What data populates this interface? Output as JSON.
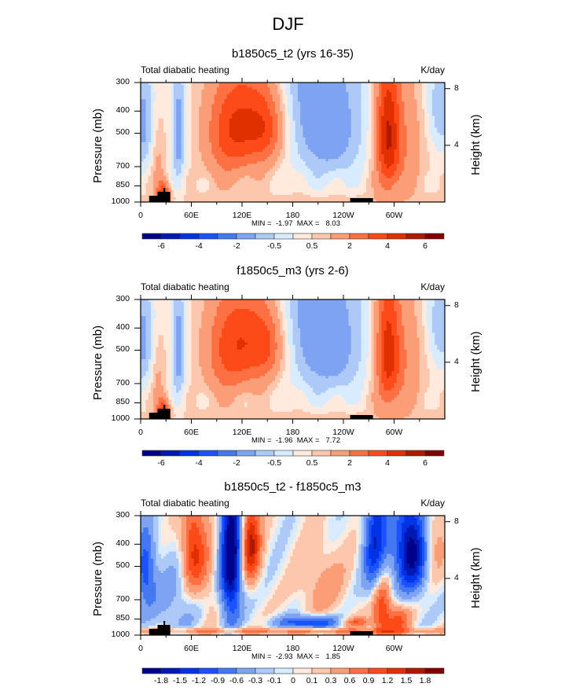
{
  "figure": {
    "title": "DJF",
    "colors_full": [
      "#00008a",
      "#0019b3",
      "#0033e6",
      "#1a52ff",
      "#4478f0",
      "#7ea3f2",
      "#adc9f7",
      "#d9ebff",
      "#ffeadd",
      "#fdc7ad",
      "#fb9e78",
      "#fd7043",
      "#fc4a18",
      "#e03000",
      "#b01800",
      "#800000"
    ],
    "topography_color": "#000000"
  },
  "chart_data": [
    {
      "type": "heatmap",
      "title": "b1850c5_t2 (yrs 16-35)",
      "left_string": "Total diabatic heating",
      "right_string": "K/day",
      "xlabel": "",
      "ylabel": "Pressure (mb)",
      "ylabel_right": "Height (km)",
      "x_ticks": [
        "0",
        "60E",
        "120E",
        "180",
        "120W",
        "60W"
      ],
      "x_tick_values": [
        0,
        60,
        120,
        180,
        240,
        300
      ],
      "xlim": [
        0,
        360
      ],
      "y_ticks": [
        "300",
        "400",
        "500",
        "700",
        "850",
        "1000"
      ],
      "y_tick_values": [
        300,
        400,
        500,
        700,
        850,
        1000
      ],
      "ylim": [
        1000,
        300
      ],
      "y_right_ticks": [
        "8",
        "4"
      ],
      "y_right_tick_values": [
        8,
        4
      ],
      "min_max_text": "MIN =  -1.97  MAX =   8.03",
      "min": -1.97,
      "max": 8.03,
      "contour_levels": [
        -6,
        -5,
        -4,
        -3,
        -2,
        -1,
        -0.5,
        0,
        0.5,
        1,
        2,
        3,
        4,
        5,
        6
      ],
      "colorbar_labels": [
        "-6",
        "",
        "-4",
        "",
        "-2",
        "",
        "-0.5",
        "",
        "0.5",
        "",
        "2",
        "",
        "4",
        "",
        "6"
      ],
      "field_description": "Heating maxima over Maritime Continent (~100-150E, 300-700mb, up to ~5 K/day) and South America (~70-50W, up to 8 K/day); cooling over eastern Pacific (~160-110W, -1 to -2 K/day)."
    },
    {
      "type": "heatmap",
      "title": "f1850c5_m3 (yrs 2-6)",
      "left_string": "Total diabatic heating",
      "right_string": "K/day",
      "xlabel": "",
      "ylabel": "Pressure (mb)",
      "ylabel_right": "Height (km)",
      "x_ticks": [
        "0",
        "60E",
        "120E",
        "180",
        "120W",
        "60W"
      ],
      "x_tick_values": [
        0,
        60,
        120,
        180,
        240,
        300
      ],
      "xlim": [
        0,
        360
      ],
      "y_ticks": [
        "300",
        "400",
        "500",
        "700",
        "850",
        "1000"
      ],
      "y_tick_values": [
        300,
        400,
        500,
        700,
        850,
        1000
      ],
      "ylim": [
        1000,
        300
      ],
      "y_right_ticks": [
        "8",
        "4"
      ],
      "y_right_tick_values": [
        8,
        4
      ],
      "min_max_text": "MIN =  -1.96  MAX =   7.72",
      "min": -1.96,
      "max": 7.72,
      "contour_levels": [
        -6,
        -5,
        -4,
        -3,
        -2,
        -1,
        -0.5,
        0,
        0.5,
        1,
        2,
        3,
        4,
        5,
        6
      ],
      "colorbar_labels": [
        "-6",
        "",
        "-4",
        "",
        "-2",
        "",
        "-0.5",
        "",
        "0.5",
        "",
        "2",
        "",
        "4",
        "",
        "6"
      ],
      "field_description": "Similar structure to control: Maritime Continent heating (~90-160E), South American heating (~75-40W), eastern Pacific cooling."
    },
    {
      "type": "heatmap",
      "title": "b1850c5_t2 - f1850c5_m3",
      "left_string": "Total diabatic heating",
      "right_string": "K/day",
      "xlabel": "",
      "ylabel": "Pressure (mb)",
      "ylabel_right": "Height (km)",
      "x_ticks": [
        "0",
        "60E",
        "120E",
        "180",
        "120W",
        "60W"
      ],
      "x_tick_values": [
        0,
        60,
        120,
        180,
        240,
        300
      ],
      "xlim": [
        0,
        360
      ],
      "y_ticks": [
        "300",
        "400",
        "500",
        "700",
        "850",
        "1000"
      ],
      "y_tick_values": [
        300,
        400,
        500,
        700,
        850,
        1000
      ],
      "ylim": [
        1000,
        300
      ],
      "y_right_ticks": [
        "8",
        "4"
      ],
      "y_right_tick_values": [
        8,
        4
      ],
      "min_max_text": "MIN =  -2.93  MAX =   1.85",
      "min": -2.93,
      "max": 1.85,
      "contour_levels": [
        -1.8,
        -1.5,
        -1.2,
        -0.9,
        -0.6,
        -0.3,
        -0.1,
        0,
        0.1,
        0.3,
        0.6,
        0.9,
        1.2,
        1.5,
        1.8
      ],
      "colorbar_labels": [
        "-1.8",
        "-1.5",
        "-1.2",
        "-0.9",
        "-0.6",
        "-0.3",
        "-0.1",
        "0",
        "0.1",
        "0.3",
        "0.6",
        "0.9",
        "1.2",
        "1.5",
        "1.8"
      ],
      "field_description": "Dipole differences: positive near 60E and 130E upper levels, negative near 100-110E and 60-40W; positive lower-level heating over South America (~70W)."
    }
  ]
}
